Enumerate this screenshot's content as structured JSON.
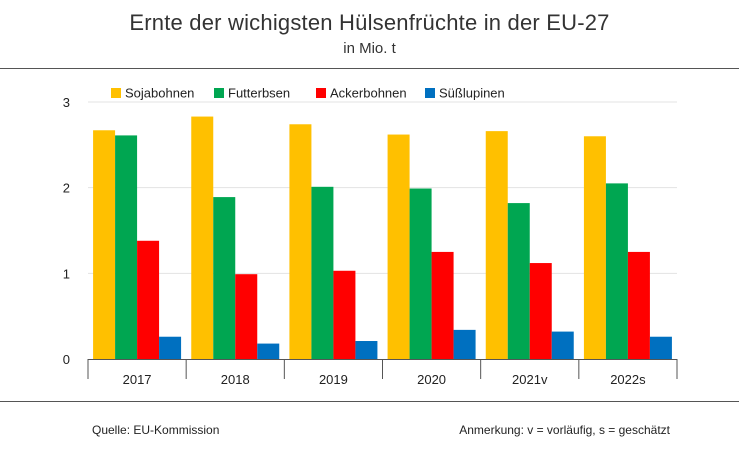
{
  "header": {
    "title": "Ernte der wichigsten Hülsenfrüchte in der EU-27",
    "subtitle": "in Mio. t"
  },
  "footer": {
    "source": "Quelle: EU-Kommission",
    "note": "Anmerkung: v = vorläufig, s = geschätzt"
  },
  "chart_data": {
    "type": "bar",
    "title": "Ernte der wichigsten Hülsenfrüchte in der EU-27",
    "subtitle": "in Mio. t",
    "xlabel": "",
    "ylabel": "",
    "categories": [
      "2017",
      "2018",
      "2019",
      "2020",
      "2021v",
      "2022s"
    ],
    "ylim": [
      0,
      3
    ],
    "yticks": [
      "0",
      "1",
      "2",
      "3"
    ],
    "grid": true,
    "legend_position": "top",
    "series": [
      {
        "name": "Sojabohnen",
        "color": "#ffc000",
        "values": [
          2.67,
          2.83,
          2.74,
          2.62,
          2.66,
          2.6
        ]
      },
      {
        "name": "Futterbsen",
        "color": "#00a651",
        "values": [
          2.61,
          1.89,
          2.01,
          1.99,
          1.82,
          2.05
        ]
      },
      {
        "name": "Ackerbohnen",
        "color": "#ff0000",
        "values": [
          1.38,
          0.99,
          1.03,
          1.25,
          1.12,
          1.25
        ]
      },
      {
        "name": "Süßlupinen",
        "color": "#0070c0",
        "values": [
          0.26,
          0.18,
          0.21,
          0.34,
          0.32,
          0.26
        ]
      }
    ]
  }
}
